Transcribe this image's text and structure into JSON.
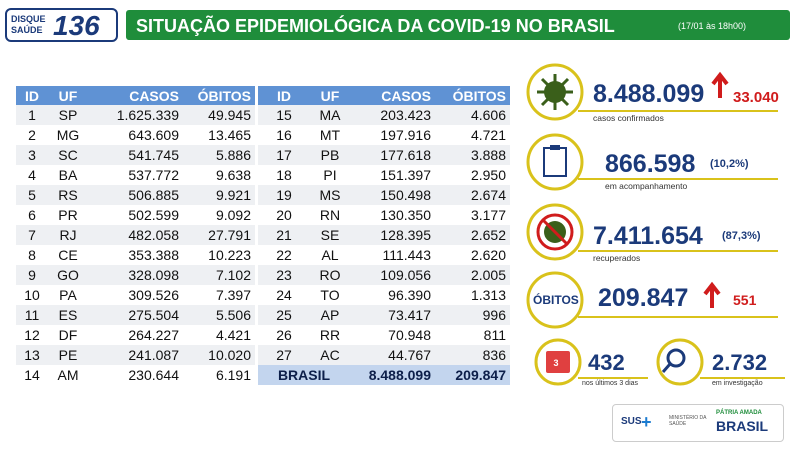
{
  "header": {
    "hotline_label": "DISQUE SAÚDE",
    "hotline_number": "136",
    "title": "SITUAÇÃO EPIDEMIOLÓGICA DA COVID-19 NO BRASIL",
    "timestamp": "(17/01 às 18h00)"
  },
  "tables": [
    {
      "columns": [
        "ID",
        "UF",
        "CASOS",
        "ÓBITOS"
      ],
      "rows": [
        [
          "1",
          "SP",
          "1.625.339",
          "49.945"
        ],
        [
          "2",
          "MG",
          "643.609",
          "13.465"
        ],
        [
          "3",
          "SC",
          "541.745",
          "5.886"
        ],
        [
          "4",
          "BA",
          "537.772",
          "9.638"
        ],
        [
          "5",
          "RS",
          "506.885",
          "9.921"
        ],
        [
          "6",
          "PR",
          "502.599",
          "9.092"
        ],
        [
          "7",
          "RJ",
          "482.058",
          "27.791"
        ],
        [
          "8",
          "CE",
          "353.388",
          "10.223"
        ],
        [
          "9",
          "GO",
          "328.098",
          "7.102"
        ],
        [
          "10",
          "PA",
          "309.526",
          "7.397"
        ],
        [
          "11",
          "ES",
          "275.504",
          "5.506"
        ],
        [
          "12",
          "DF",
          "264.227",
          "4.421"
        ],
        [
          "13",
          "PE",
          "241.087",
          "10.020"
        ],
        [
          "14",
          "AM",
          "230.644",
          "6.191"
        ]
      ]
    },
    {
      "columns": [
        "ID",
        "UF",
        "CASOS",
        "ÓBITOS"
      ],
      "rows": [
        [
          "15",
          "MA",
          "203.423",
          "4.606"
        ],
        [
          "16",
          "MT",
          "197.916",
          "4.721"
        ],
        [
          "17",
          "PB",
          "177.618",
          "3.888"
        ],
        [
          "18",
          "PI",
          "151.397",
          "2.950"
        ],
        [
          "19",
          "MS",
          "150.498",
          "2.674"
        ],
        [
          "20",
          "RN",
          "130.350",
          "3.177"
        ],
        [
          "21",
          "SE",
          "128.395",
          "2.652"
        ],
        [
          "22",
          "AL",
          "111.443",
          "2.620"
        ],
        [
          "23",
          "RO",
          "109.056",
          "2.005"
        ],
        [
          "24",
          "TO",
          "96.390",
          "1.313"
        ],
        [
          "25",
          "AP",
          "73.417",
          "996"
        ],
        [
          "26",
          "RR",
          "70.948",
          "811"
        ],
        [
          "27",
          "AC",
          "44.767",
          "836"
        ]
      ],
      "total": [
        "BRASIL",
        "8.488.099",
        "209.847"
      ]
    }
  ],
  "stats": [
    {
      "value": "8.488.099",
      "change": "33.040",
      "caption": "casos confirmados"
    },
    {
      "value": "866.598",
      "share": "(10,2%)",
      "caption": "em acompanhamento"
    },
    {
      "value": "7.411.654",
      "share": "(87,3%)",
      "caption": "recuperados"
    },
    {
      "label": "ÓBITOS",
      "value": "209.847",
      "change": "551"
    }
  ],
  "small_stats": [
    {
      "icon_text": "3",
      "value": "432",
      "caption": "nos últimos 3 dias"
    },
    {
      "value": "2.732",
      "caption": "em investigação"
    }
  ],
  "footer": {
    "sus": "SUS",
    "ministry": "MINISTÉRIO DA SAÚDE",
    "slogan": "PÁTRIA AMADA",
    "country": "BRASIL"
  }
}
